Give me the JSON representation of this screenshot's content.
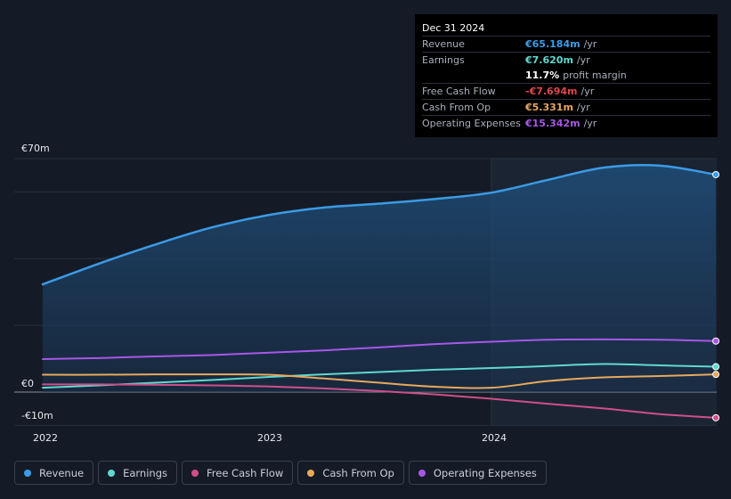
{
  "tooltip": {
    "date": "Dec 31 2024",
    "rows": [
      {
        "label": "Revenue",
        "value": "€65.184m",
        "unit": "/yr",
        "color": "#3b9be6"
      },
      {
        "label": "Earnings",
        "value": "€7.620m",
        "unit": "/yr",
        "color": "#5fd8cf"
      },
      {
        "label": "",
        "value": "11.7%",
        "unit": "profit margin",
        "color": "#ffffff"
      },
      {
        "label": "Free Cash Flow",
        "value": "-€7.694m",
        "unit": "/yr",
        "color": "#e0464f"
      },
      {
        "label": "Cash From Op",
        "value": "€5.331m",
        "unit": "/yr",
        "color": "#e8a85c"
      },
      {
        "label": "Operating Expenses",
        "value": "€15.342m",
        "unit": "/yr",
        "color": "#a757e8"
      }
    ]
  },
  "legend": [
    {
      "label": "Revenue",
      "color": "#3b9be6"
    },
    {
      "label": "Earnings",
      "color": "#5fd8cf"
    },
    {
      "label": "Free Cash Flow",
      "color": "#cf4f8a"
    },
    {
      "label": "Cash From Op",
      "color": "#e8a85c"
    },
    {
      "label": "Operating Expenses",
      "color": "#a757e8"
    }
  ],
  "chart_data": {
    "type": "area",
    "y_tick_labels": [
      "€70m",
      "€0",
      "-€10m"
    ],
    "x_tick_labels": [
      "2022",
      "2023",
      "2024"
    ],
    "ylim": [
      -10,
      70
    ],
    "xlim": [
      2022.0,
      2025.0
    ],
    "x": [
      2022.0,
      2022.25,
      2022.5,
      2022.75,
      2023.0,
      2023.25,
      2023.5,
      2023.75,
      2024.0,
      2024.25,
      2024.5,
      2024.75,
      2025.0
    ],
    "series": [
      {
        "name": "Revenue",
        "color": "#3b9be6",
        "values": [
          32.3,
          38.5,
          44.2,
          49.3,
          53.0,
          55.3,
          56.5,
          57.9,
          59.8,
          63.6,
          67.3,
          67.9,
          65.2
        ]
      },
      {
        "name": "Earnings",
        "color": "#5fd8cf",
        "values": [
          1.3,
          2.0,
          2.8,
          3.6,
          4.5,
          5.3,
          6.0,
          6.7,
          7.2,
          7.8,
          8.4,
          8.0,
          7.6
        ]
      },
      {
        "name": "Free Cash Flow",
        "color": "#cf4f8a",
        "values": [
          2.3,
          2.3,
          2.2,
          2.0,
          1.7,
          1.1,
          0.3,
          -0.7,
          -2.0,
          -3.5,
          -4.9,
          -6.6,
          -7.7
        ]
      },
      {
        "name": "Cash From Op",
        "color": "#e8a85c",
        "values": [
          5.2,
          5.2,
          5.3,
          5.3,
          5.2,
          4.1,
          2.8,
          1.6,
          1.3,
          3.3,
          4.4,
          4.8,
          5.3
        ]
      },
      {
        "name": "Operating Expenses",
        "color": "#a757e8",
        "values": [
          9.9,
          10.2,
          10.7,
          11.1,
          11.8,
          12.5,
          13.4,
          14.4,
          15.1,
          15.7,
          15.8,
          15.7,
          15.3
        ]
      }
    ],
    "grid": true,
    "legend_position": "bottom",
    "highlight_from": 2024.0
  }
}
